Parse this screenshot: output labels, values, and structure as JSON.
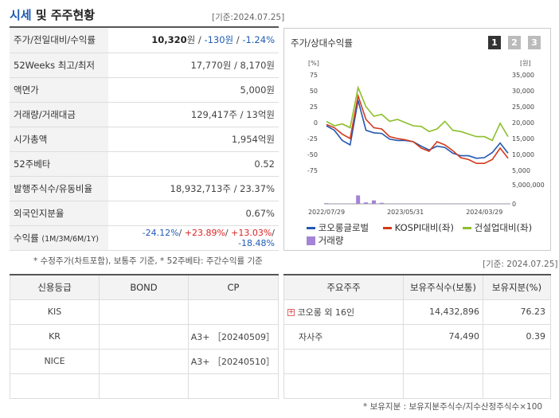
{
  "header": {
    "title_highlight": "시세",
    "title_rest": " 및 주주현황",
    "date": "[기준:2024.07.25]"
  },
  "market_rows": [
    {
      "label": "주가/전일대비/수익률",
      "value_main": "10,320",
      "value_unit": "원 / ",
      "value_b": "-130원",
      "value_c": " / ",
      "value_d": "-1.24%"
    },
    {
      "label": "52Weeks 최고/최저",
      "value": "17,770원 / 8,170원"
    },
    {
      "label": "액면가",
      "value": "5,000원"
    },
    {
      "label": "거래량/거래대금",
      "value": "129,417주 / 13억원"
    },
    {
      "label": "시가총액",
      "value": "1,954억원"
    },
    {
      "label": "52주베타",
      "value": "0.52"
    },
    {
      "label": "발행주식수/유동비율",
      "value": "18,932,713주 / 23.37%"
    },
    {
      "label": "외국인지분율",
      "value": "0.67%"
    }
  ],
  "return_row": {
    "label": "수익률",
    "sub": "(1M/3M/6M/1Y)",
    "v1": "-24.12%",
    "v2": "+23.89%",
    "v3": "+13.03%",
    "v4": "-18.48%",
    "sep": "/ "
  },
  "footnote1": "* 수정주가(차트포함), 보통주 기준, * 52주베타: 주간수익률 기준",
  "chart_panel": {
    "title": "주가/상대수익률",
    "tabs": [
      "1",
      "2",
      "3"
    ],
    "left_unit": "[%]",
    "right_unit": "[원]"
  },
  "chart_data": {
    "type": "line",
    "x_ticks": [
      "2022/07/29",
      "2023/05/31",
      "2024/03/29"
    ],
    "left_axis": {
      "ticks": [
        "75",
        "50",
        "25",
        "0",
        "-25",
        "-50",
        "-75"
      ],
      "ylim": [
        -75,
        75
      ]
    },
    "right_axis": {
      "ticks": [
        "35,000",
        "30,000",
        "25,000",
        "20,000",
        "15,000",
        "10,000",
        "5,000"
      ],
      "ylim": [
        5000,
        35000
      ]
    },
    "volume_axis": {
      "ticks": [
        "5,000,000",
        "0"
      ],
      "ylim": [
        0,
        5000000
      ]
    },
    "series": [
      {
        "name": "코오롱글로벌",
        "color": "#2457b0",
        "values": [
          -5,
          -12,
          -28,
          -35,
          35,
          -12,
          -16,
          -17,
          -26,
          -28,
          -28,
          -30,
          -37,
          -43,
          -37,
          -39,
          -48,
          -52,
          -52,
          -56,
          -55,
          -47,
          -32,
          -48
        ]
      },
      {
        "name": "KOSPI대비(좌)",
        "color": "#d33a1b",
        "values": [
          -3,
          -8,
          -18,
          -25,
          42,
          5,
          -8,
          -10,
          -22,
          -25,
          -27,
          -30,
          -40,
          -45,
          -30,
          -35,
          -44,
          -55,
          -58,
          -64,
          -64,
          -58,
          -40,
          -56
        ]
      },
      {
        "name": "건설업대비(좌)",
        "color": "#8cbf2a",
        "values": [
          2,
          -5,
          -2,
          -8,
          55,
          25,
          10,
          13,
          2,
          5,
          0,
          -5,
          -6,
          -14,
          -10,
          2,
          -12,
          -14,
          -18,
          -22,
          -22,
          -28,
          -1,
          -22
        ]
      },
      {
        "name": "거래량",
        "color": "#a484d6",
        "type": "bar"
      }
    ],
    "volume": [
      180000,
      90000,
      60000,
      70000,
      2200000,
      380000,
      900000,
      260000,
      90000,
      110000,
      80000,
      70000,
      50000,
      60000,
      60000,
      90000,
      60000,
      50000,
      50000,
      60000,
      80000,
      60000,
      100000,
      50000
    ]
  },
  "credit_table": {
    "headers": [
      "신용등급",
      "BOND",
      "CP"
    ],
    "rows": [
      [
        "KIS",
        "",
        ""
      ],
      [
        "KR",
        "",
        "A3+ ［20240509］"
      ],
      [
        "NICE",
        "",
        "A3+ ［20240510］"
      ],
      [
        "",
        "",
        ""
      ]
    ]
  },
  "holders_date": "[기준: 2024.07.25]",
  "holders_table": {
    "headers": [
      "주요주주",
      "보유주식수(보통)",
      "보유지분(%)"
    ],
    "rows": [
      [
        "코오롱 외 16인",
        "14,432,896",
        "76.23"
      ],
      [
        "자사주",
        "74,490",
        "0.39"
      ],
      [
        "",
        "",
        ""
      ],
      [
        "",
        "",
        ""
      ]
    ]
  },
  "footnote2": "* 보유지분 : 보유지분주식수/지수산정주식수×100",
  "colors": {
    "accent": "#1f5bb4",
    "negative": "#1f5bb4",
    "positive": "#d22222",
    "tab_active": "#333333",
    "tab_inactive": "#bbbbbb"
  },
  "icons": {
    "holder_expand": "plus-box-icon"
  }
}
